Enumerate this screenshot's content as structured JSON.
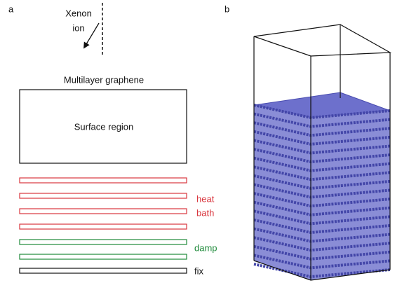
{
  "panel_a": {
    "label": "a",
    "projectile": [
      "Xenon",
      "ion"
    ],
    "title": "Multilayer graphene",
    "region": "Surface region",
    "layer_labels": {
      "heat": "heat",
      "bath": "bath",
      "damp": "damp",
      "fix": "fix"
    }
  },
  "panel_b": {
    "label": "b"
  }
}
